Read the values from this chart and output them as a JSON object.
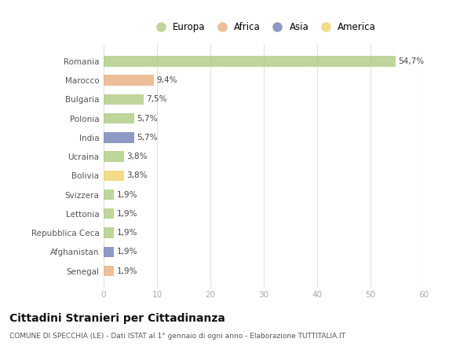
{
  "countries": [
    "Romania",
    "Marocco",
    "Bulgaria",
    "Polonia",
    "India",
    "Ucraina",
    "Bolivia",
    "Svizzera",
    "Lettonia",
    "Repubblica Ceca",
    "Afghanistan",
    "Senegal"
  ],
  "values": [
    54.7,
    9.4,
    7.5,
    5.7,
    5.7,
    3.8,
    3.8,
    1.9,
    1.9,
    1.9,
    1.9,
    1.9
  ],
  "labels": [
    "54,7%",
    "9,4%",
    "7,5%",
    "5,7%",
    "5,7%",
    "3,8%",
    "3,8%",
    "1,9%",
    "1,9%",
    "1,9%",
    "1,9%",
    "1,9%"
  ],
  "colors": [
    "#a8c87a",
    "#e8a878",
    "#a8c87a",
    "#a8c87a",
    "#6878b0",
    "#a8c87a",
    "#f0d060",
    "#a8c87a",
    "#a8c87a",
    "#a8c87a",
    "#6878b0",
    "#e8a878"
  ],
  "legend_labels": [
    "Europa",
    "Africa",
    "Asia",
    "America"
  ],
  "legend_colors": [
    "#a8c87a",
    "#e8a878",
    "#6878b0",
    "#f0d060"
  ],
  "title": "Cittadini Stranieri per Cittadinanza",
  "subtitle": "COMUNE DI SPECCHIA (LE) - Dati ISTAT al 1° gennaio di ogni anno - Elaborazione TUTTITALIA.IT",
  "xlim": [
    0,
    60
  ],
  "xticks": [
    0,
    10,
    20,
    30,
    40,
    50,
    60
  ],
  "background_color": "#ffffff",
  "grid_color": "#e0e0e0",
  "bar_alpha": 0.75,
  "bar_height": 0.55
}
